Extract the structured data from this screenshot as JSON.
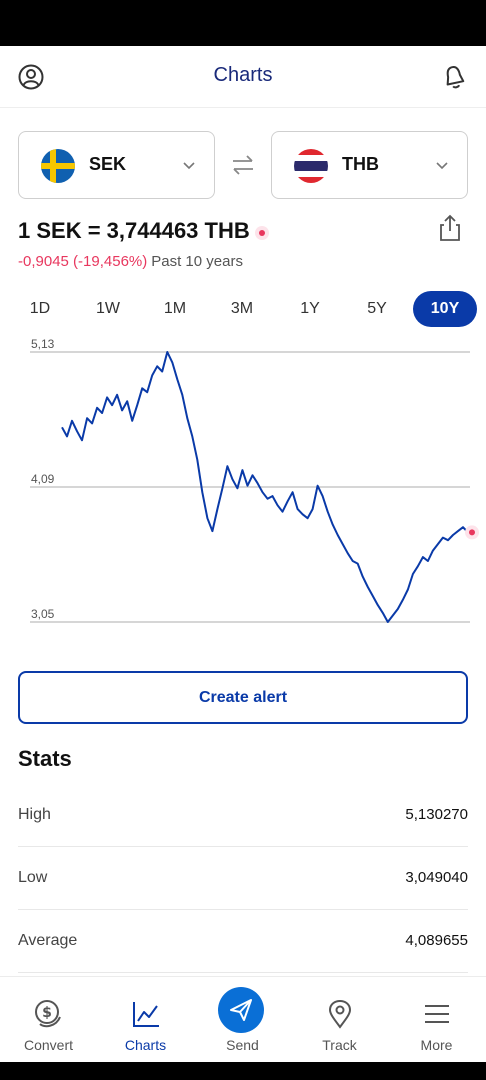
{
  "header": {
    "title": "Charts",
    "profile_icon": "profile-icon",
    "bell_icon": "bell-icon"
  },
  "pair": {
    "from": {
      "code": "SEK",
      "flag": "sweden-flag-icon"
    },
    "to": {
      "code": "THB",
      "flag": "thailand-flag-icon"
    }
  },
  "rate": {
    "text": "1 SEK = 3,744463 THB",
    "change": "-0,9045 (-19,456%)",
    "period": "Past 10 years"
  },
  "ranges": [
    "1D",
    "1W",
    "1M",
    "3M",
    "1Y",
    "5Y",
    "10Y"
  ],
  "active_range": "10Y",
  "chart_data": {
    "type": "line",
    "ytick_labels": [
      "5,13",
      "4,09",
      "3,05"
    ],
    "yticks": [
      5.13,
      4.09,
      3.05
    ],
    "ylim": [
      3.05,
      5.13
    ],
    "grid": true,
    "line_color": "#0a3aa8",
    "end_marker_color": "#e8375e",
    "series": [
      {
        "values": [
          4.55,
          4.48,
          4.6,
          4.52,
          4.45,
          4.62,
          4.58,
          4.7,
          4.66,
          4.78,
          4.72,
          4.8,
          4.68,
          4.75,
          4.6,
          4.72,
          4.85,
          4.82,
          4.95,
          5.02,
          4.98,
          5.13,
          5.05,
          4.92,
          4.8,
          4.62,
          4.48,
          4.3,
          4.05,
          3.85,
          3.75,
          3.92,
          4.08,
          4.25,
          4.15,
          4.08,
          4.22,
          4.1,
          4.18,
          4.12,
          4.05,
          4.0,
          4.02,
          3.95,
          3.9,
          3.98,
          4.05,
          3.92,
          3.88,
          3.85,
          3.92,
          4.1,
          4.02,
          3.9,
          3.8,
          3.72,
          3.65,
          3.58,
          3.52,
          3.5,
          3.4,
          3.32,
          3.25,
          3.18,
          3.12,
          3.05,
          3.1,
          3.15,
          3.22,
          3.3,
          3.42,
          3.48,
          3.55,
          3.52,
          3.6,
          3.65,
          3.7,
          3.68,
          3.72,
          3.75,
          3.78,
          3.74
        ]
      }
    ]
  },
  "create_alert": "Create alert",
  "stats": {
    "title": "Stats",
    "rows": [
      {
        "label": "High",
        "value": "5,130270"
      },
      {
        "label": "Low",
        "value": "3,049040"
      },
      {
        "label": "Average",
        "value": "4,089655"
      }
    ]
  },
  "nav": [
    {
      "label": "Convert",
      "icon": "coin-icon"
    },
    {
      "label": "Charts",
      "icon": "chart-icon"
    },
    {
      "label": "Send",
      "icon": "send-icon"
    },
    {
      "label": "Track",
      "icon": "location-pin-icon"
    },
    {
      "label": "More",
      "icon": "menu-icon"
    }
  ],
  "active_nav": "Charts"
}
